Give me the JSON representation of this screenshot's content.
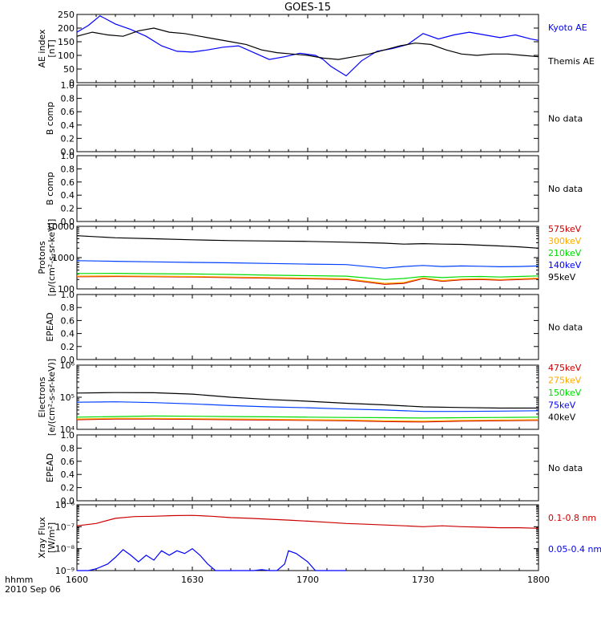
{
  "title": "GOES-15",
  "footer": {
    "line1": "hhmm",
    "line2": "2010 Sep 06"
  },
  "x_axis": {
    "ticks": [
      1600,
      1630,
      1700,
      1730,
      1800
    ],
    "tick_labels": [
      "1600",
      "1630",
      "1700",
      "1730",
      "1800"
    ],
    "range_min": [
      0,
      120
    ]
  },
  "no_data_text": "No data",
  "colors": {
    "black": "#000000",
    "blue": "#0000ff",
    "red": "#cc0000",
    "orange": "#ffaa00",
    "green": "#00dd00",
    "mid_blue": "#0040ff"
  },
  "chart_data": [
    {
      "id": "ae",
      "type": "line",
      "ylabel_lines": [
        "AE index",
        "[nT]"
      ],
      "ylim": [
        0,
        250
      ],
      "y_ticks": [
        0,
        50,
        100,
        150,
        200,
        250
      ],
      "y_tick_labels": [
        "0",
        "50",
        "100",
        "150",
        "200",
        "250"
      ],
      "scale": "linear",
      "series": [
        {
          "name": "Kyoto AE",
          "color": "#0000ff",
          "x": [
            0,
            3,
            6,
            10,
            14,
            18,
            22,
            26,
            30,
            34,
            38,
            42,
            46,
            50,
            54,
            58,
            62,
            64,
            66,
            70,
            74,
            78,
            82,
            86,
            90,
            94,
            98,
            102,
            106,
            110,
            114,
            118,
            120
          ],
          "y": [
            185,
            210,
            245,
            215,
            195,
            170,
            135,
            115,
            112,
            120,
            130,
            135,
            110,
            85,
            95,
            108,
            100,
            85,
            60,
            25,
            80,
            115,
            125,
            140,
            180,
            160,
            175,
            185,
            175,
            165,
            175,
            160,
            155
          ]
        },
        {
          "name": "Themis AE",
          "color": "#000000",
          "x": [
            0,
            4,
            8,
            12,
            16,
            20,
            24,
            28,
            32,
            36,
            40,
            44,
            48,
            52,
            56,
            60,
            64,
            68,
            72,
            76,
            80,
            84,
            88,
            92,
            96,
            100,
            104,
            108,
            112,
            116,
            120
          ],
          "y": [
            170,
            185,
            175,
            170,
            190,
            200,
            185,
            180,
            170,
            160,
            150,
            140,
            120,
            110,
            105,
            100,
            90,
            85,
            95,
            105,
            120,
            135,
            145,
            140,
            120,
            105,
            100,
            105,
            105,
            100,
            95
          ]
        }
      ]
    },
    {
      "id": "bcomp1",
      "type": "line",
      "ylabel_lines": [
        "B comp"
      ],
      "ylim": [
        0,
        1.0
      ],
      "y_ticks": [
        0,
        0.2,
        0.4,
        0.6,
        0.8,
        1.0
      ],
      "y_tick_labels": [
        "0.0",
        "0.2",
        "0.4",
        "0.6",
        "0.8",
        "1.0"
      ],
      "scale": "linear",
      "series": [],
      "note": "No data"
    },
    {
      "id": "bcomp2",
      "type": "line",
      "ylabel_lines": [
        "B comp"
      ],
      "ylim": [
        0,
        1.0
      ],
      "y_ticks": [
        0,
        0.2,
        0.4,
        0.6,
        0.8,
        1.0
      ],
      "y_tick_labels": [
        "0.0",
        "0.2",
        "0.4",
        "0.6",
        "0.8",
        "1.0"
      ],
      "scale": "linear",
      "series": [],
      "note": "No data"
    },
    {
      "id": "protons",
      "type": "line",
      "ylabel_lines": [
        "Protons",
        "[p/(cm²-s-sr-keV)]"
      ],
      "ylim": [
        100,
        10000
      ],
      "y_ticks": [
        100,
        1000,
        10000
      ],
      "y_tick_labels": [
        "100",
        "1000",
        "10000"
      ],
      "scale": "log",
      "series": [
        {
          "name": "575keV",
          "color": "#cc0000",
          "x": [
            0,
            10,
            20,
            30,
            40,
            50,
            60,
            70,
            80,
            85,
            90,
            95,
            100,
            105,
            110,
            115,
            120
          ],
          "y": [
            245,
            250,
            245,
            240,
            230,
            220,
            210,
            200,
            140,
            150,
            215,
            175,
            195,
            200,
            190,
            200,
            210
          ]
        },
        {
          "name": "300keV",
          "color": "#ffaa00",
          "x": [
            0,
            10,
            20,
            30,
            40,
            50,
            60,
            70,
            80,
            85,
            90,
            95,
            100,
            105,
            110,
            115,
            120
          ],
          "y": [
            255,
            260,
            255,
            250,
            240,
            230,
            220,
            210,
            150,
            160,
            225,
            185,
            205,
            210,
            200,
            210,
            220
          ]
        },
        {
          "name": "210keV",
          "color": "#00dd00",
          "x": [
            0,
            10,
            20,
            30,
            40,
            50,
            60,
            70,
            80,
            85,
            90,
            95,
            100,
            105,
            110,
            115,
            120
          ],
          "y": [
            310,
            315,
            305,
            300,
            290,
            275,
            265,
            255,
            200,
            215,
            250,
            230,
            245,
            250,
            240,
            250,
            260
          ]
        },
        {
          "name": "140keV",
          "color": "#0040ff",
          "x": [
            0,
            10,
            20,
            30,
            40,
            50,
            60,
            70,
            80,
            85,
            90,
            95,
            100,
            105,
            110,
            115,
            120
          ],
          "y": [
            800,
            760,
            730,
            700,
            680,
            650,
            620,
            600,
            460,
            520,
            560,
            520,
            540,
            530,
            510,
            520,
            540
          ]
        },
        {
          "name": "95keV",
          "color": "#000000",
          "x": [
            0,
            10,
            20,
            30,
            40,
            50,
            60,
            70,
            80,
            85,
            90,
            95,
            100,
            105,
            110,
            115,
            120
          ],
          "y": [
            5000,
            4300,
            4000,
            3700,
            3500,
            3400,
            3300,
            3100,
            2900,
            2700,
            2800,
            2700,
            2650,
            2500,
            2350,
            2200,
            2000
          ]
        }
      ]
    },
    {
      "id": "epead1",
      "type": "line",
      "ylabel_lines": [
        "EPEAD"
      ],
      "ylim": [
        0,
        1.0
      ],
      "y_ticks": [
        0,
        0.2,
        0.4,
        0.6,
        0.8,
        1.0
      ],
      "y_tick_labels": [
        "0.0",
        "0.2",
        "0.4",
        "0.6",
        "0.8",
        "1.0"
      ],
      "scale": "linear",
      "series": [],
      "note": "No data"
    },
    {
      "id": "electrons",
      "type": "line",
      "ylabel_lines": [
        "Electrons",
        "[e/(cm²-s-sr-keV)]"
      ],
      "ylim": [
        10000,
        1000000
      ],
      "y_ticks": [
        10000,
        100000,
        1000000
      ],
      "y_tick_labels": [
        "10⁴",
        "10⁵",
        "10⁶"
      ],
      "scale": "log",
      "series": [
        {
          "name": "475keV",
          "color": "#cc0000",
          "x": [
            0,
            10,
            20,
            30,
            40,
            50,
            60,
            70,
            80,
            90,
            100,
            110,
            120
          ],
          "y": [
            20000,
            21000,
            21000,
            20500,
            20000,
            19500,
            19000,
            18500,
            17500,
            17000,
            18000,
            18500,
            19000
          ]
        },
        {
          "name": "275keV",
          "color": "#ffaa00",
          "x": [
            0,
            10,
            20,
            30,
            40,
            50,
            60,
            70,
            80,
            90,
            100,
            110,
            120
          ],
          "y": [
            21000,
            22000,
            22000,
            21500,
            21000,
            20500,
            20000,
            19500,
            18500,
            18000,
            19000,
            19500,
            20000
          ]
        },
        {
          "name": "150keV",
          "color": "#00dd00",
          "x": [
            0,
            10,
            20,
            30,
            40,
            50,
            60,
            70,
            80,
            90,
            100,
            110,
            120
          ],
          "y": [
            24000,
            25000,
            26000,
            25500,
            25000,
            24500,
            24000,
            23500,
            23000,
            22500,
            23000,
            23500,
            24000
          ]
        },
        {
          "name": "75keV",
          "color": "#0040ff",
          "x": [
            0,
            10,
            20,
            30,
            40,
            50,
            60,
            70,
            80,
            90,
            100,
            110,
            120
          ],
          "y": [
            70000,
            72000,
            68000,
            62000,
            55000,
            50000,
            47000,
            43000,
            40000,
            36000,
            36000,
            37000,
            38000
          ]
        },
        {
          "name": "40keV",
          "color": "#000000",
          "x": [
            0,
            10,
            20,
            30,
            40,
            50,
            60,
            70,
            80,
            90,
            100,
            110,
            120
          ],
          "y": [
            135000,
            140000,
            138000,
            125000,
            100000,
            85000,
            75000,
            65000,
            58000,
            50000,
            48000,
            46000,
            46000
          ]
        }
      ]
    },
    {
      "id": "epead2",
      "type": "line",
      "ylabel_lines": [
        "EPEAD"
      ],
      "ylim": [
        0,
        1.0
      ],
      "y_ticks": [
        0,
        0.2,
        0.4,
        0.6,
        0.8,
        1.0
      ],
      "y_tick_labels": [
        "0.0",
        "0.2",
        "0.4",
        "0.6",
        "0.8",
        "1.0"
      ],
      "scale": "linear",
      "series": [],
      "note": "No data"
    },
    {
      "id": "xray",
      "type": "line",
      "ylabel_lines": [
        "Xray Flux",
        "[W/m²]"
      ],
      "ylim": [
        1e-09,
        1e-06
      ],
      "y_ticks": [
        1e-09,
        1e-08,
        1e-07,
        1e-06
      ],
      "y_tick_labels": [
        "10⁻⁹",
        "10⁻⁸",
        "10⁻⁷",
        "10⁻⁶"
      ],
      "scale": "log",
      "series": [
        {
          "name": "0.1-0.8 nm",
          "color": "#cc0000",
          "x": [
            0,
            5,
            10,
            15,
            20,
            25,
            30,
            35,
            40,
            45,
            50,
            55,
            60,
            65,
            70,
            75,
            80,
            85,
            90,
            95,
            100,
            105,
            110,
            115,
            120
          ],
          "y": [
            1.1e-07,
            1.4e-07,
            2.4e-07,
            2.9e-07,
            3e-07,
            3.2e-07,
            3.3e-07,
            3e-07,
            2.6e-07,
            2.4e-07,
            2.2e-07,
            2e-07,
            1.8e-07,
            1.6e-07,
            1.4e-07,
            1.3e-07,
            1.2e-07,
            1.1e-07,
            1e-07,
            1.1e-07,
            1e-07,
            9.5e-08,
            9e-08,
            9e-08,
            8.5e-08
          ]
        },
        {
          "name": "0.05-0.4 nm",
          "color": "#0000ff",
          "x": [
            0,
            3,
            5,
            8,
            10,
            12,
            14,
            16,
            18,
            20,
            22,
            24,
            26,
            28,
            30,
            32,
            34,
            36,
            38,
            40,
            42,
            44,
            46,
            48,
            50,
            52,
            54,
            55,
            57,
            60,
            62,
            64,
            66,
            70
          ],
          "y": [
            1e-09,
            1e-09,
            1.2e-09,
            2e-09,
            4e-09,
            9e-09,
            5e-09,
            2.5e-09,
            5e-09,
            3e-09,
            8e-09,
            5e-09,
            8e-09,
            6e-09,
            1e-08,
            5e-09,
            2e-09,
            1e-09,
            1e-09,
            1e-09,
            1e-09,
            1e-09,
            1e-09,
            1.1e-09,
            1e-09,
            1e-09,
            2e-09,
            8e-09,
            6e-09,
            2.5e-09,
            1e-09,
            1e-09,
            1e-09,
            1e-09
          ]
        }
      ]
    }
  ]
}
